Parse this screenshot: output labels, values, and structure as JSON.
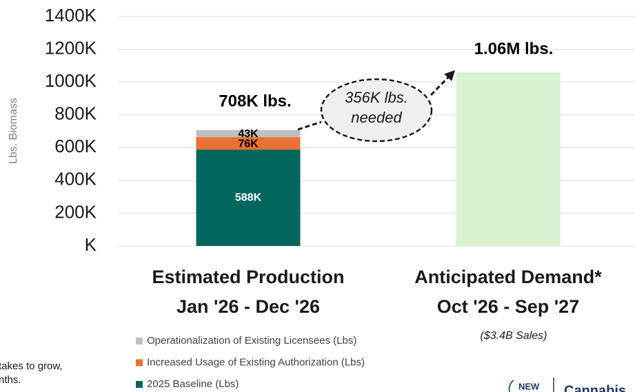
{
  "chart_data": {
    "type": "stacked_bar",
    "y_axis_label": "Lbs. Biomass",
    "categories": [
      [
        "Estimated Production",
        "Jan '26 - Dec '26"
      ],
      [
        "Anticipated Demand*",
        "Oct '26 - Sep '27"
      ]
    ],
    "series": [
      {
        "name": "2025 Baseline (Lbs)",
        "color": "#01665e",
        "values": [
          588000,
          null
        ],
        "value_labels": [
          "588K",
          null
        ]
      },
      {
        "name": "Increased Usage of Existing Authorization (Lbs)",
        "color": "#e97132",
        "values": [
          76000,
          null
        ],
        "value_labels": [
          "76K",
          null
        ]
      },
      {
        "name": "Operationalization of Existing Licensees (Lbs)",
        "color": "#bfbfbf",
        "values": [
          43000,
          null
        ],
        "value_labels": [
          "43K",
          null
        ]
      }
    ],
    "demand": 1060000,
    "demand_color": "#d9f2d0",
    "annotations": {
      "production_total": "708K lbs.",
      "demand_total": "1.06M lbs.",
      "gap": [
        "356K lbs.",
        "needed"
      ],
      "demand_note": "($3.4B Sales)",
      "footnote_fragments": [
        "takes to grow,",
        "nths."
      ],
      "logo": [
        "NEW",
        "Cannabis"
      ]
    },
    "ylim": [
      0,
      1400000
    ],
    "yticks": [
      {
        "value": 0,
        "label": "K"
      },
      {
        "value": 200000,
        "label": "200K"
      },
      {
        "value": 400000,
        "label": "400K"
      },
      {
        "value": 600000,
        "label": "600K"
      },
      {
        "value": 800000,
        "label": "800K"
      },
      {
        "value": 1000000,
        "label": "1000K"
      },
      {
        "value": 1200000,
        "label": "1200K"
      },
      {
        "value": 1400000,
        "label": "1400K"
      }
    ],
    "grid": true
  }
}
